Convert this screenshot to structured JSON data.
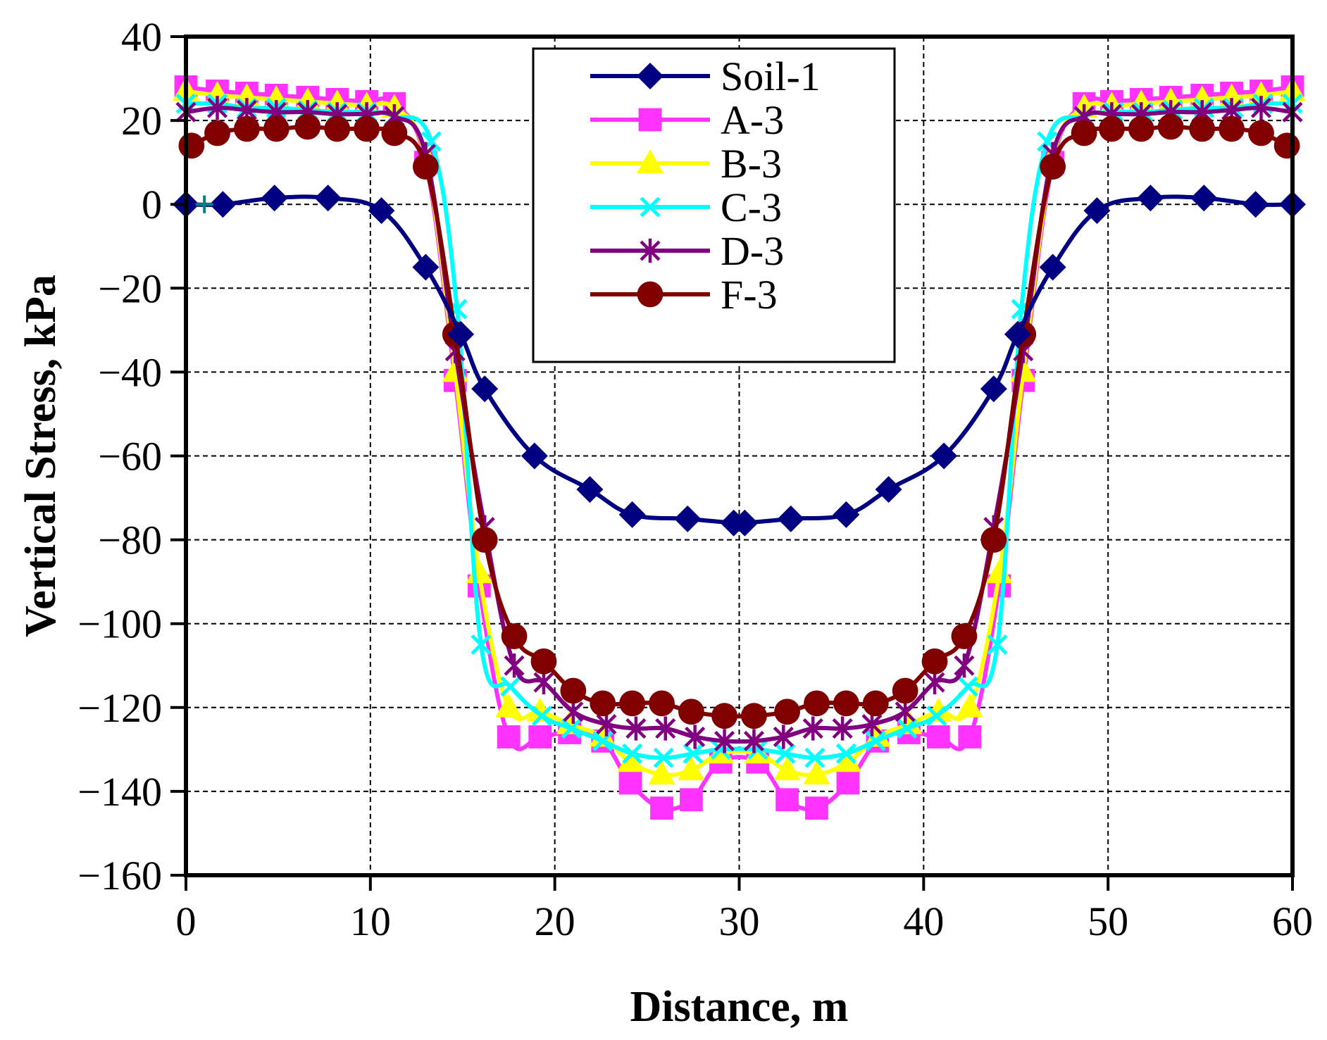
{
  "chart_data": {
    "type": "line",
    "title": "",
    "xlabel": "Distance, m",
    "ylabel": "Vertical Stress, kPa",
    "xlim": [
      0,
      60
    ],
    "ylim": [
      -160,
      40
    ],
    "xticks": [
      0,
      10,
      20,
      30,
      40,
      50,
      60
    ],
    "yticks": [
      40,
      20,
      0,
      -20,
      -40,
      -60,
      -80,
      -100,
      -120,
      -140,
      -160
    ],
    "ytick_labels": [
      "40",
      "20",
      "0",
      "−20",
      "−40",
      "−60",
      "−80",
      "−100",
      "−120",
      "−140",
      "−160"
    ],
    "grid": true,
    "legend_position": "top-center",
    "series": [
      {
        "name": "Soil-1",
        "color": "#000080",
        "marker": "diamond",
        "x": [
          0,
          2,
          4.8,
          7.7,
          10.6,
          13,
          14.9,
          16.2,
          18.9,
          21.9,
          24.2,
          27.2,
          29.7,
          30.3,
          32.8,
          35.8,
          38.1,
          41.1,
          43.8,
          45.1,
          47,
          49.4,
          52.3,
          55.2,
          58,
          60
        ],
        "y": [
          0,
          0,
          1.5,
          1.5,
          -1.5,
          -15,
          -31,
          -44,
          -60,
          -68,
          -74,
          -75,
          -76,
          -76,
          -75,
          -74,
          -68,
          -60,
          -44,
          -31,
          -15,
          -1.5,
          1.5,
          1.5,
          0,
          0
        ]
      },
      {
        "name": "A-3",
        "color": "#ff33ff",
        "marker": "square",
        "x": [
          0,
          1.7,
          3.3,
          4.9,
          6.6,
          8.2,
          9.8,
          11.3,
          13,
          14.6,
          15.9,
          17.5,
          19.2,
          20.8,
          22.6,
          24.1,
          25.8,
          27.4,
          29,
          31,
          32.6,
          34.2,
          35.9,
          37.5,
          39.2,
          40.8,
          42.5,
          44.1,
          45.4,
          47,
          48.7,
          50.2,
          51.8,
          53.4,
          55.1,
          56.7,
          58.3,
          60
        ],
        "y": [
          28,
          27,
          26.5,
          26,
          25.5,
          25,
          24.5,
          24,
          10,
          -42,
          -91,
          -127,
          -127,
          -126,
          -128,
          -138,
          -144,
          -142,
          -133,
          -133,
          -142,
          -144,
          -138,
          -128,
          -126,
          -127,
          -127,
          -91,
          -42,
          10,
          24,
          24.5,
          25,
          25.5,
          26,
          26.5,
          27,
          28
        ]
      },
      {
        "name": "B-3",
        "color": "#ffff00",
        "marker": "triangle",
        "x": [
          0,
          1.7,
          3.3,
          4.9,
          6.6,
          8.2,
          9.8,
          11.3,
          13,
          14.6,
          15.9,
          17.5,
          19.2,
          20.8,
          22.6,
          24.1,
          25.8,
          27.4,
          29,
          31,
          32.6,
          34.2,
          35.9,
          37.5,
          39.2,
          40.8,
          42.5,
          44.1,
          45.4,
          47,
          48.7,
          50.2,
          51.8,
          53.4,
          55.1,
          56.7,
          58.3,
          60
        ],
        "y": [
          27,
          26,
          25.5,
          25,
          24.5,
          24,
          23.5,
          23,
          11,
          -40,
          -88,
          -120,
          -121,
          -124,
          -127,
          -133,
          -136,
          -135,
          -131,
          -131,
          -135,
          -136,
          -133,
          -127,
          -124,
          -121,
          -120,
          -88,
          -40,
          11,
          23,
          23.5,
          24,
          24.5,
          25,
          25.5,
          26,
          27
        ]
      },
      {
        "name": "C-3",
        "color": "#00ffff",
        "marker": "x",
        "x": [
          0,
          1.7,
          3.3,
          4.9,
          6.6,
          8.2,
          9.8,
          11.3,
          13.3,
          14.7,
          16,
          17.6,
          19.3,
          20.9,
          22.6,
          24.2,
          25.9,
          27.5,
          29,
          31,
          32.5,
          34.1,
          35.8,
          37.4,
          39.1,
          40.7,
          42.4,
          44,
          45.3,
          46.7,
          48.7,
          50.3,
          51.9,
          53.5,
          55.2,
          56.8,
          58.4,
          60
        ],
        "y": [
          24,
          24,
          23,
          23,
          22.5,
          22,
          22,
          21,
          15,
          -25,
          -105,
          -115,
          -122,
          -125,
          -128,
          -131,
          -132,
          -131,
          -130,
          -130,
          -131,
          -132,
          -131,
          -128,
          -125,
          -122,
          -115,
          -105,
          -25,
          15,
          21,
          22,
          22,
          22.5,
          23,
          23,
          24,
          24
        ]
      },
      {
        "name": "D-3",
        "color": "#800080",
        "marker": "star",
        "x": [
          0,
          1.7,
          3.3,
          4.9,
          6.6,
          8.2,
          9.8,
          11.3,
          13,
          14.6,
          16.2,
          17.8,
          19.4,
          21,
          22.8,
          24.4,
          26,
          27.6,
          29.2,
          30.8,
          32.4,
          34,
          35.6,
          37.2,
          39,
          40.6,
          42.2,
          43.8,
          45.4,
          47,
          48.7,
          50.2,
          51.8,
          53.4,
          55.1,
          56.7,
          58.3,
          60
        ],
        "y": [
          22,
          23,
          22.5,
          22,
          22,
          21.5,
          21.5,
          21,
          12,
          -35,
          -77,
          -110,
          -114,
          -121,
          -124,
          -125,
          -125,
          -127,
          -128,
          -128,
          -127,
          -125,
          -125,
          -124,
          -121,
          -114,
          -110,
          -77,
          -35,
          12,
          21,
          21.5,
          21.5,
          22,
          22,
          22.5,
          23,
          22
        ]
      },
      {
        "name": "F-3",
        "color": "#800000",
        "marker": "circle",
        "x": [
          0.3,
          1.7,
          3.3,
          4.9,
          6.6,
          8.2,
          9.8,
          11.3,
          13,
          14.6,
          16.2,
          17.8,
          19.4,
          21,
          22.6,
          24.2,
          25.8,
          27.4,
          29.2,
          30.8,
          32.6,
          34.2,
          35.8,
          37.4,
          39,
          40.6,
          42.2,
          43.8,
          45.4,
          47,
          48.7,
          50.2,
          51.8,
          53.4,
          55.1,
          56.7,
          58.3,
          59.7
        ],
        "y": [
          14,
          17,
          18,
          18,
          18.5,
          18,
          18,
          17,
          9,
          -31,
          -80,
          -103,
          -109,
          -116,
          -119,
          -119,
          -119,
          -121,
          -122,
          -122,
          -121,
          -119,
          -119,
          -119,
          -116,
          -109,
          -103,
          -80,
          -31,
          9,
          17,
          18,
          18,
          18.5,
          18,
          18,
          17,
          14
        ]
      }
    ],
    "annotations": [
      {
        "type": "marker",
        "x": 1,
        "y": 0,
        "color": "#008080",
        "marker": "plus"
      }
    ]
  }
}
